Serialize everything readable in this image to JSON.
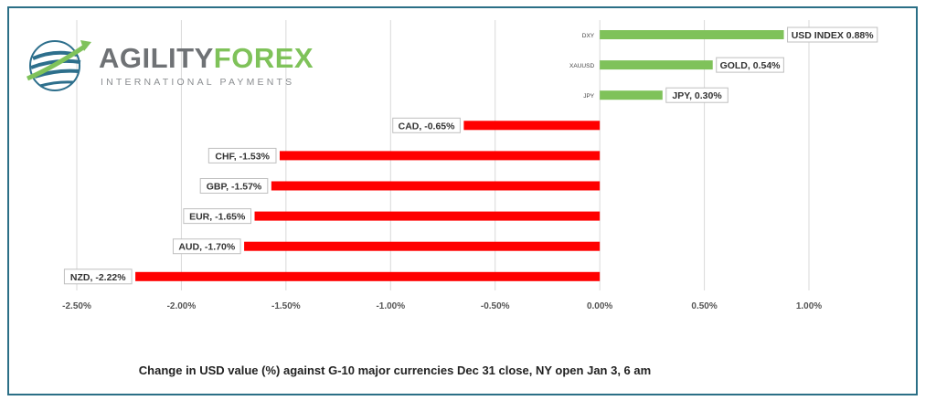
{
  "logo": {
    "word_part1": "AGILITY",
    "word_part2": "FOREX",
    "subtitle": "INTERNATIONAL PAYMENTS",
    "icon": "globe-swoosh-icon"
  },
  "chart_data": {
    "type": "bar",
    "orientation": "horizontal",
    "categories": [
      "DXY",
      "XAUUSD",
      "JPY",
      "CAD",
      "CHF",
      "GBP",
      "EUR",
      "AUD",
      "NZD"
    ],
    "values": [
      0.88,
      0.54,
      0.3,
      -0.65,
      -1.53,
      -1.57,
      -1.65,
      -1.7,
      -2.22
    ],
    "data_labels": [
      "USD INDEX 0.88%",
      "GOLD, 0.54%",
      "JPY, 0.30%",
      "CAD, -0.65%",
      "CHF, -1.53%",
      "GBP, -1.57%",
      "EUR, -1.65%",
      "AUD, -1.70%",
      "NZD, -2.22%"
    ],
    "xlim": [
      -2.5,
      1.0
    ],
    "xticks": [
      -2.5,
      -2.0,
      -1.5,
      -1.0,
      -0.5,
      0.0,
      0.5,
      1.0
    ],
    "xtick_labels": [
      "-2.50%",
      "-2.00%",
      "-1.50%",
      "-1.00%",
      "-0.50%",
      "0.00%",
      "0.50%",
      "1.00%"
    ],
    "grid": true,
    "legend": "none",
    "colors": {
      "positive": "#7fc25a",
      "negative": "#ff0000",
      "grid": "#d9d9d9",
      "frame": "#2b6f86"
    },
    "caption": "Change in  USD value (%)  against  G-10 major currencies Dec 31 close, NY open  Jan 3, 6 am"
  }
}
